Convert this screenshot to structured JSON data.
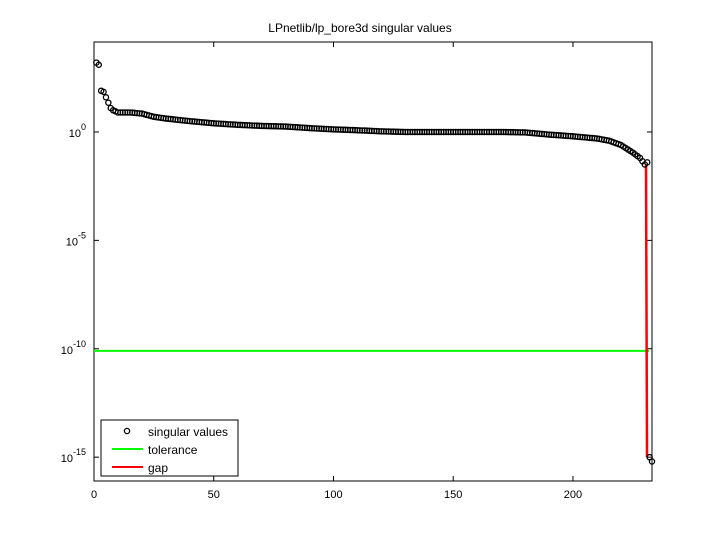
{
  "chart_data": {
    "type": "scatter",
    "title": "LPnetlib/lp_bore3d singular values",
    "xlabel": "",
    "ylabel": "",
    "xlim": [
      0,
      233
    ],
    "ylim_log10": [
      -16.1,
      4.15
    ],
    "yscale": "log",
    "grid": false,
    "legend_position": "lower left",
    "x_ticks": [
      0,
      50,
      100,
      150,
      200
    ],
    "x_tick_labels": [
      "0",
      "50",
      "100",
      "150",
      "200"
    ],
    "y_ticks_log10": [
      0,
      -5,
      -10,
      -15
    ],
    "y_tick_labels": [
      {
        "base": "10",
        "exp": "0"
      },
      {
        "base": "10",
        "exp": "-5"
      },
      {
        "base": "10",
        "exp": "-10"
      },
      {
        "base": "10",
        "exp": "-15"
      }
    ],
    "legend": [
      "singular values",
      "tolerance",
      "gap"
    ],
    "series": [
      {
        "name": "singular values",
        "style": "circle-markers",
        "color": "#000000",
        "profile_log10": [
          [
            1,
            3.2
          ],
          [
            2,
            3.1
          ],
          [
            3,
            1.9
          ],
          [
            4,
            1.85
          ],
          [
            5,
            1.6
          ],
          [
            6,
            1.35
          ],
          [
            7,
            1.1
          ],
          [
            8,
            1.0
          ],
          [
            9,
            0.95
          ],
          [
            10,
            0.9
          ],
          [
            15,
            0.9
          ],
          [
            20,
            0.85
          ],
          [
            25,
            0.7
          ],
          [
            30,
            0.62
          ],
          [
            40,
            0.5
          ],
          [
            50,
            0.4
          ],
          [
            60,
            0.33
          ],
          [
            70,
            0.28
          ],
          [
            80,
            0.25
          ],
          [
            90,
            0.18
          ],
          [
            100,
            0.12
          ],
          [
            110,
            0.08
          ],
          [
            120,
            0.03
          ],
          [
            130,
            0.0
          ],
          [
            150,
            0.0
          ],
          [
            170,
            0.0
          ],
          [
            180,
            -0.02
          ],
          [
            190,
            -0.12
          ],
          [
            200,
            -0.2
          ],
          [
            210,
            -0.3
          ],
          [
            215,
            -0.4
          ],
          [
            220,
            -0.6
          ],
          [
            225,
            -0.95
          ],
          [
            228,
            -1.2
          ],
          [
            230,
            -1.5
          ],
          [
            231,
            -1.4
          ],
          [
            232,
            -15.0
          ],
          [
            233,
            -15.2
          ]
        ]
      },
      {
        "name": "tolerance",
        "style": "line",
        "color": "#00ff00",
        "value_log10": -10.1
      },
      {
        "name": "gap",
        "style": "line",
        "color": "#ff0000",
        "x": 230.5,
        "from_log10": -1.5,
        "to_log10": -15.0
      }
    ]
  }
}
